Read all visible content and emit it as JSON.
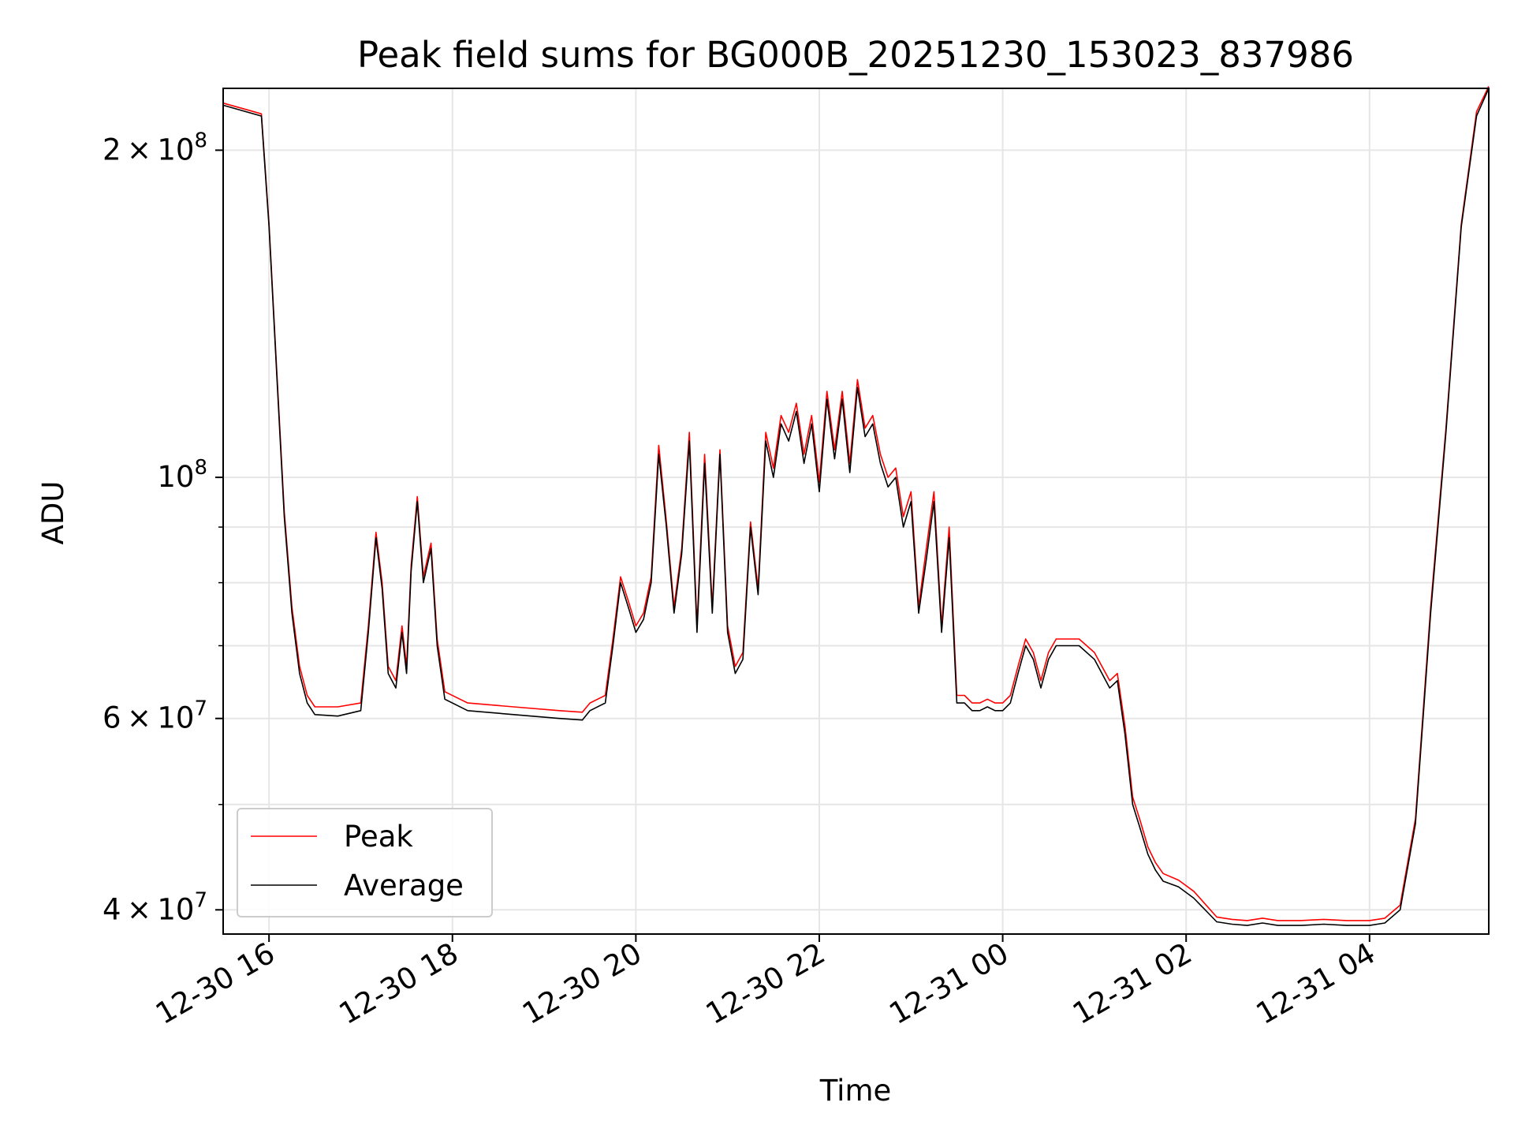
{
  "chart_data": {
    "type": "line",
    "title": "Peak field sums for BG000B_20251230_153023_837986",
    "xlabel": "Time",
    "ylabel": "ADU",
    "yscale": "log",
    "ylim": [
      38000000,
      228000000
    ],
    "xlim": [
      "2025-12-30 15:30",
      "2025-12-31 05:18"
    ],
    "grid": true,
    "legend": "lower-left",
    "x_ticks": [
      {
        "label": "12-30 16",
        "x": "2025-12-30 16:00"
      },
      {
        "label": "12-30 18",
        "x": "2025-12-30 18:00"
      },
      {
        "label": "12-30 20",
        "x": "2025-12-30 20:00"
      },
      {
        "label": "12-30 22",
        "x": "2025-12-30 22:00"
      },
      {
        "label": "12-31 00",
        "x": "2025-12-31 00:00"
      },
      {
        "label": "12-31 02",
        "x": "2025-12-31 02:00"
      },
      {
        "label": "12-31 04",
        "x": "2025-12-31 04:00"
      }
    ],
    "y_ticks": [
      {
        "base": "4 × 10",
        "exp": "7",
        "value": 40000000
      },
      {
        "base": "6 × 10",
        "exp": "7",
        "value": 60000000
      },
      {
        "base": "10",
        "exp": "8",
        "value": 100000000
      },
      {
        "base": "2 × 10",
        "exp": "8",
        "value": 200000000
      }
    ],
    "y_minor_ticks": [
      50000000,
      70000000,
      80000000,
      90000000
    ],
    "series": [
      {
        "name": "Peak",
        "color": "#ff0000"
      },
      {
        "name": "Average",
        "color": "#000000"
      }
    ],
    "x": [
      "2025-12-30 15:30",
      "2025-12-30 15:45",
      "2025-12-30 15:55",
      "2025-12-30 16:00",
      "2025-12-30 16:05",
      "2025-12-30 16:10",
      "2025-12-30 16:15",
      "2025-12-30 16:20",
      "2025-12-30 16:25",
      "2025-12-30 16:30",
      "2025-12-30 16:45",
      "2025-12-30 17:00",
      "2025-12-30 17:05",
      "2025-12-30 17:10",
      "2025-12-30 17:14",
      "2025-12-30 17:18",
      "2025-12-30 17:23",
      "2025-12-30 17:27",
      "2025-12-30 17:30",
      "2025-12-30 17:33",
      "2025-12-30 17:37",
      "2025-12-30 17:41",
      "2025-12-30 17:46",
      "2025-12-30 17:50",
      "2025-12-30 17:55",
      "2025-12-30 18:10",
      "2025-12-30 18:40",
      "2025-12-30 19:10",
      "2025-12-30 19:25",
      "2025-12-30 19:30",
      "2025-12-30 19:40",
      "2025-12-30 19:45",
      "2025-12-30 19:50",
      "2025-12-30 19:55",
      "2025-12-30 20:00",
      "2025-12-30 20:05",
      "2025-12-30 20:10",
      "2025-12-30 20:15",
      "2025-12-30 20:20",
      "2025-12-30 20:25",
      "2025-12-30 20:30",
      "2025-12-30 20:35",
      "2025-12-30 20:40",
      "2025-12-30 20:45",
      "2025-12-30 20:50",
      "2025-12-30 20:55",
      "2025-12-30 21:00",
      "2025-12-30 21:05",
      "2025-12-30 21:10",
      "2025-12-30 21:15",
      "2025-12-30 21:20",
      "2025-12-30 21:25",
      "2025-12-30 21:30",
      "2025-12-30 21:35",
      "2025-12-30 21:40",
      "2025-12-30 21:45",
      "2025-12-30 21:50",
      "2025-12-30 21:55",
      "2025-12-30 22:00",
      "2025-12-30 22:05",
      "2025-12-30 22:10",
      "2025-12-30 22:15",
      "2025-12-30 22:20",
      "2025-12-30 22:25",
      "2025-12-30 22:30",
      "2025-12-30 22:35",
      "2025-12-30 22:40",
      "2025-12-30 22:45",
      "2025-12-30 22:50",
      "2025-12-30 22:55",
      "2025-12-30 23:00",
      "2025-12-30 23:05",
      "2025-12-30 23:10",
      "2025-12-30 23:15",
      "2025-12-30 23:20",
      "2025-12-30 23:25",
      "2025-12-30 23:30",
      "2025-12-30 23:35",
      "2025-12-30 23:40",
      "2025-12-30 23:45",
      "2025-12-30 23:50",
      "2025-12-30 23:55",
      "2025-12-31 00:00",
      "2025-12-31 00:05",
      "2025-12-31 00:10",
      "2025-12-31 00:15",
      "2025-12-31 00:20",
      "2025-12-31 00:25",
      "2025-12-31 00:30",
      "2025-12-31 00:35",
      "2025-12-31 00:40",
      "2025-12-31 00:50",
      "2025-12-31 01:00",
      "2025-12-31 01:10",
      "2025-12-31 01:15",
      "2025-12-31 01:20",
      "2025-12-31 01:25",
      "2025-12-31 01:30",
      "2025-12-31 01:35",
      "2025-12-31 01:40",
      "2025-12-31 01:45",
      "2025-12-31 01:55",
      "2025-12-31 02:05",
      "2025-12-31 02:20",
      "2025-12-31 02:30",
      "2025-12-31 02:40",
      "2025-12-31 02:50",
      "2025-12-31 03:00",
      "2025-12-31 03:15",
      "2025-12-31 03:30",
      "2025-12-31 03:45",
      "2025-12-31 04:00",
      "2025-12-31 04:10",
      "2025-12-31 04:20",
      "2025-12-31 04:30",
      "2025-12-31 04:40",
      "2025-12-31 04:50",
      "2025-12-31 05:00",
      "2025-12-31 05:10",
      "2025-12-31 05:18"
    ],
    "average": [
      220000000,
      217000000,
      215000000,
      170000000,
      125000000,
      92000000,
      75000000,
      66000000,
      62000000,
      60500000,
      60300000,
      61000000,
      72000000,
      88000000,
      79000000,
      66000000,
      64000000,
      72000000,
      66000000,
      82000000,
      95000000,
      80000000,
      86000000,
      70000000,
      62500000,
      61000000,
      60500000,
      60000000,
      59800000,
      61000000,
      62000000,
      70000000,
      80000000,
      76000000,
      72000000,
      74000000,
      80000000,
      105000000,
      90000000,
      75000000,
      85000000,
      108000000,
      72000000,
      103000000,
      75000000,
      105000000,
      72000000,
      66000000,
      68000000,
      90000000,
      78000000,
      108000000,
      100000000,
      112000000,
      108000000,
      115000000,
      103000000,
      112000000,
      97000000,
      118000000,
      104000000,
      118000000,
      101000000,
      121000000,
      109000000,
      112000000,
      103000000,
      98000000,
      100000000,
      90000000,
      95000000,
      75000000,
      84000000,
      95000000,
      72000000,
      88000000,
      62000000,
      62000000,
      61000000,
      61000000,
      61500000,
      61000000,
      61000000,
      62000000,
      66000000,
      70000000,
      68000000,
      64000000,
      68000000,
      70000000,
      70000000,
      70000000,
      68000000,
      64000000,
      65000000,
      58000000,
      50000000,
      47500000,
      45000000,
      43500000,
      42500000,
      42000000,
      41000000,
      39000000,
      38800000,
      38700000,
      38900000,
      38700000,
      38700000,
      38800000,
      38700000,
      38700000,
      38900000,
      40000000,
      48000000,
      75000000,
      110000000,
      170000000,
      215000000,
      228000000
    ],
    "peak": [
      221000000,
      218000000,
      216000000,
      171000000,
      126000000,
      93000000,
      76000000,
      67000000,
      63000000,
      61500000,
      61500000,
      62000000,
      73000000,
      89000000,
      80000000,
      67000000,
      65000000,
      73000000,
      67000000,
      83000000,
      96000000,
      81000000,
      87000000,
      71000000,
      63500000,
      62000000,
      61500000,
      61000000,
      60800000,
      62000000,
      63000000,
      71000000,
      81000000,
      77000000,
      73000000,
      75000000,
      81000000,
      107000000,
      91000000,
      76000000,
      86000000,
      110000000,
      73000000,
      105000000,
      76000000,
      106000000,
      73000000,
      67000000,
      69000000,
      91000000,
      79000000,
      110000000,
      102000000,
      114000000,
      110000000,
      117000000,
      105000000,
      114000000,
      99000000,
      120000000,
      106000000,
      120000000,
      103000000,
      123000000,
      111000000,
      114000000,
      105000000,
      100000000,
      102000000,
      92000000,
      97000000,
      76000000,
      86000000,
      97000000,
      73000000,
      90000000,
      63000000,
      63000000,
      62000000,
      62000000,
      62500000,
      62000000,
      62000000,
      63000000,
      67000000,
      71000000,
      69000000,
      65000000,
      69000000,
      71000000,
      71000000,
      71000000,
      69000000,
      65000000,
      66000000,
      59000000,
      50800000,
      48300000,
      45700000,
      44200000,
      43200000,
      42600000,
      41600000,
      39400000,
      39200000,
      39100000,
      39300000,
      39100000,
      39100000,
      39200000,
      39100000,
      39100000,
      39300000,
      40400000,
      48500000,
      76000000,
      111000000,
      171000000,
      217000000,
      229000000
    ]
  }
}
